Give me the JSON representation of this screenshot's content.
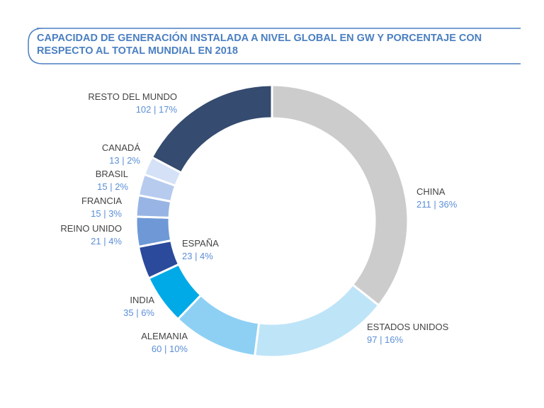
{
  "chart_data": {
    "type": "donut",
    "title": "CAPACIDAD DE GENERACIÓN INSTALADA A NIVEL GLOBAL EN GW Y PORCENTAJE CON RESPECTO AL TOTAL MUNDIAL EN 2018",
    "categories": [
      "CHINA",
      "ESTADOS UNIDOS",
      "ALEMANIA",
      "INDIA",
      "ESPAÑA",
      "REINO UNIDO",
      "FRANCIA",
      "BRASIL",
      "CANADÁ",
      "RESTO DEL MUNDO"
    ],
    "values": [
      211,
      97,
      60,
      35,
      23,
      21,
      15,
      15,
      13,
      102
    ],
    "value_labels": [
      "211 | 36%",
      "97 | 16%",
      "60 | 10%",
      "35 | 6%",
      "23 | 4%",
      "21 | 4%",
      "15 | 3%",
      "15 | 2%",
      "13 | 2%",
      "102 | 17%"
    ],
    "colors": [
      "#cccccc",
      "#bee4f8",
      "#8dd0f4",
      "#00aae6",
      "#2b4a9b",
      "#6e99d6",
      "#98b4e4",
      "#b7cbef",
      "#d5e1f6",
      "#354b6f"
    ]
  }
}
